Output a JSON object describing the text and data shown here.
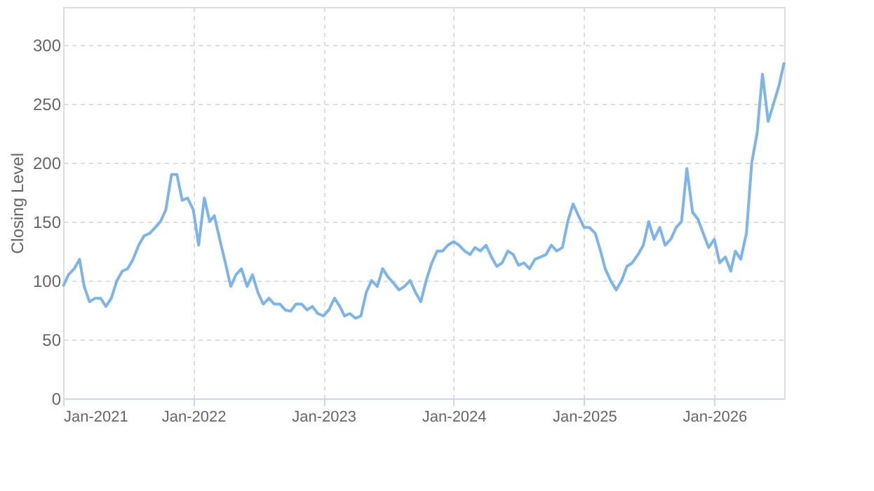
{
  "chart_data": {
    "type": "line",
    "ylabel": "Closing Level",
    "x": [
      "2021-01-01",
      "2021-01-16",
      "2021-02-01",
      "2021-02-16",
      "2021-03-01",
      "2021-03-16",
      "2021-04-01",
      "2021-04-16",
      "2021-05-01",
      "2021-05-16",
      "2021-06-01",
      "2021-06-16",
      "2021-07-01",
      "2021-07-16",
      "2021-08-01",
      "2021-08-16",
      "2021-09-01",
      "2021-09-16",
      "2021-10-01",
      "2021-10-16",
      "2021-11-01",
      "2021-11-16",
      "2021-12-01",
      "2021-12-16",
      "2022-01-01",
      "2022-01-16",
      "2022-02-01",
      "2022-02-16",
      "2022-03-01",
      "2022-03-16",
      "2022-04-01",
      "2022-04-16",
      "2022-05-01",
      "2022-05-16",
      "2022-06-01",
      "2022-06-16",
      "2022-07-01",
      "2022-07-16",
      "2022-08-01",
      "2022-08-16",
      "2022-09-01",
      "2022-09-16",
      "2022-10-01",
      "2022-10-16",
      "2022-11-01",
      "2022-11-16",
      "2022-12-01",
      "2022-12-16",
      "2023-01-01",
      "2023-01-16",
      "2023-02-01",
      "2023-02-16",
      "2023-03-01",
      "2023-03-16",
      "2023-04-01",
      "2023-04-16",
      "2023-05-01",
      "2023-05-16",
      "2023-06-01",
      "2023-06-16",
      "2023-07-01",
      "2023-07-16",
      "2023-08-01",
      "2023-08-16",
      "2023-09-01",
      "2023-09-16",
      "2023-10-01",
      "2023-10-16",
      "2023-11-01",
      "2023-11-16",
      "2023-12-01",
      "2023-12-16",
      "2024-01-01",
      "2024-01-16",
      "2024-02-01",
      "2024-02-16",
      "2024-03-01",
      "2024-03-16",
      "2024-04-01",
      "2024-04-16",
      "2024-05-01",
      "2024-05-16",
      "2024-06-01",
      "2024-06-16",
      "2024-07-01",
      "2024-07-16",
      "2024-08-01",
      "2024-08-16",
      "2024-09-01",
      "2024-09-16",
      "2024-10-01",
      "2024-10-16",
      "2024-11-01",
      "2024-11-16",
      "2024-12-01",
      "2024-12-16",
      "2025-01-01",
      "2025-01-16",
      "2025-02-01",
      "2025-02-16",
      "2025-03-01",
      "2025-03-16",
      "2025-04-01",
      "2025-04-16",
      "2025-05-01",
      "2025-05-16",
      "2025-06-01",
      "2025-06-16",
      "2025-07-01",
      "2025-07-16",
      "2025-08-01",
      "2025-08-16",
      "2025-09-01",
      "2025-09-16",
      "2025-10-01",
      "2025-10-16",
      "2025-11-01",
      "2025-11-16",
      "2025-12-01",
      "2025-12-16",
      "2026-01-01",
      "2026-01-16",
      "2026-02-01",
      "2026-02-16",
      "2026-03-01",
      "2026-03-16",
      "2026-04-01",
      "2026-04-16",
      "2026-05-01",
      "2026-05-16",
      "2026-06-01",
      "2026-06-16",
      "2026-07-01",
      "2026-07-16"
    ],
    "series": [
      {
        "color": "#7cb5ec",
        "values": [
          95,
          105,
          110,
          118,
          95,
          82,
          85,
          85,
          78,
          85,
          100,
          108,
          110,
          118,
          130,
          138,
          140,
          145,
          150,
          160,
          190,
          190,
          168,
          170,
          160,
          130,
          170,
          150,
          155,
          135,
          115,
          95,
          105,
          110,
          95,
          105,
          90,
          80,
          85,
          80,
          80,
          75,
          74,
          80,
          80,
          75,
          78,
          72,
          70,
          75,
          85,
          78,
          70,
          72,
          68,
          70,
          90,
          100,
          95,
          110,
          103,
          98,
          92,
          95,
          100,
          90,
          82,
          100,
          115,
          125,
          125,
          130,
          133,
          130,
          125,
          122,
          128,
          125,
          130,
          120,
          112,
          115,
          125,
          122,
          113,
          115,
          110,
          118,
          120,
          122,
          130,
          125,
          128,
          150,
          165,
          155,
          145,
          145,
          140,
          125,
          110,
          100,
          92,
          100,
          112,
          115,
          122,
          130,
          150,
          135,
          145,
          130,
          135,
          145,
          150,
          195,
          158,
          152,
          140,
          128,
          135,
          115,
          120,
          108,
          125,
          118,
          140,
          200,
          225,
          275,
          235,
          250,
          265,
          285
        ]
      }
    ],
    "xlim": [
      "2021-01-01",
      "2026-07-16"
    ],
    "xticks": [
      {
        "value": "2021-01-01",
        "label": "Jan-2021"
      },
      {
        "value": "2022-01-01",
        "label": "Jan-2022"
      },
      {
        "value": "2023-01-01",
        "label": "Jan-2023"
      },
      {
        "value": "2024-01-01",
        "label": "Jan-2024"
      },
      {
        "value": "2025-01-01",
        "label": "Jan-2025"
      },
      {
        "value": "2026-01-01",
        "label": "Jan-2026"
      }
    ],
    "ylim": [
      0,
      332
    ],
    "yticks": [
      0,
      50,
      100,
      150,
      200,
      250,
      300
    ],
    "grid": true,
    "legend": false,
    "marker": "none",
    "line_style": "solid"
  }
}
